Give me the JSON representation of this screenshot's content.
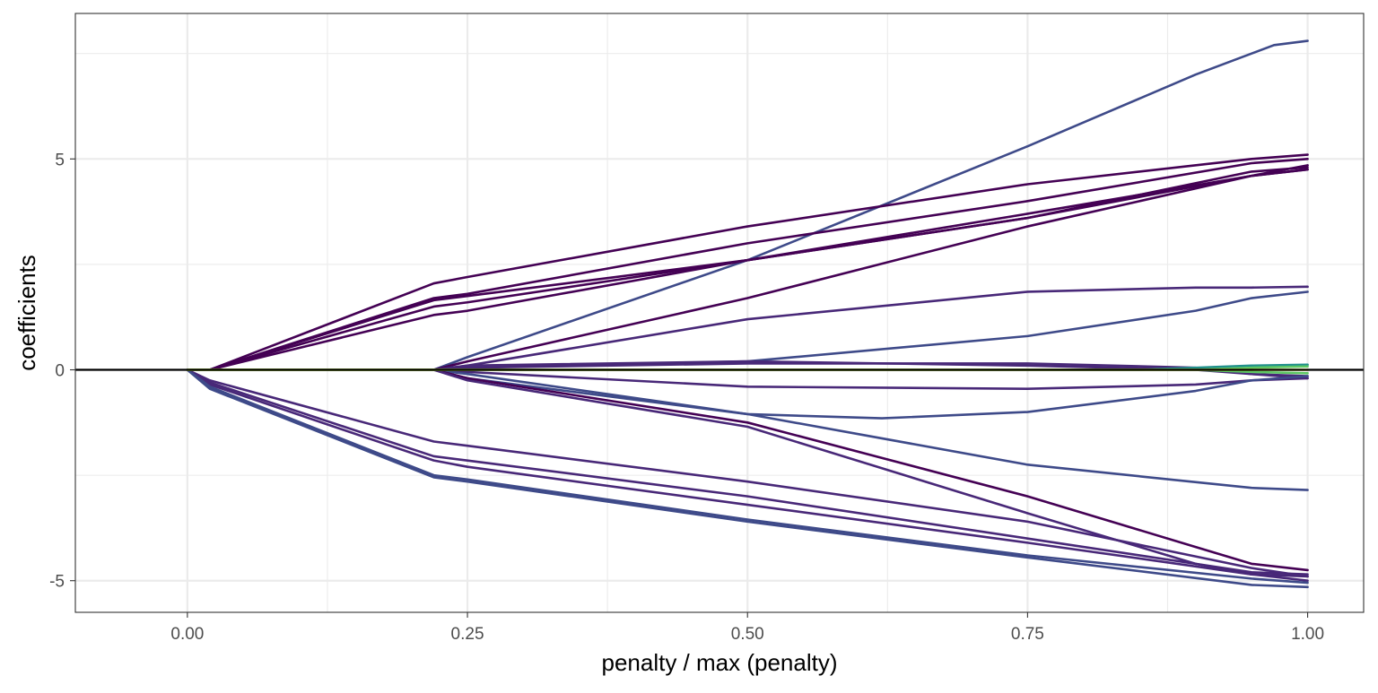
{
  "chart_data": {
    "type": "line",
    "title": "",
    "xlabel": "penalty / max (penalty)",
    "ylabel": "coefficients",
    "xlim": [
      -0.1,
      1.05
    ],
    "ylim": [
      -5.75,
      8.45
    ],
    "x_ticks": [
      0.0,
      0.25,
      0.5,
      0.75,
      1.0
    ],
    "x_tick_labels": [
      "0.00",
      "0.25",
      "0.50",
      "0.75",
      "1.00"
    ],
    "y_ticks": [
      -5,
      0,
      5
    ],
    "y_tick_labels": [
      "-5",
      "0",
      "5"
    ],
    "grid": true,
    "legend": "none",
    "reference_line": {
      "y": 0,
      "color": "#000000"
    },
    "colors": {
      "dark_purple": "#440154",
      "indigo": "#482878",
      "slate_blue": "#3e4a89",
      "teal": "#21908c",
      "green": "#5dc863",
      "yellow": "#fde725"
    },
    "series": [
      {
        "color": "#3e4a89",
        "x": [
          0,
          0.2,
          0.22,
          0.25,
          0.5,
          0.75,
          0.9,
          0.95,
          0.97,
          1.0
        ],
        "values": [
          0,
          0,
          0,
          0.3,
          2.6,
          5.3,
          7.0,
          7.5,
          7.7,
          7.8
        ]
      },
      {
        "color": "#440154",
        "x": [
          0,
          0.02,
          0.22,
          0.25,
          0.5,
          0.75,
          0.95,
          1.0
        ],
        "values": [
          0,
          0,
          2.05,
          2.2,
          3.4,
          4.4,
          5.0,
          5.1
        ]
      },
      {
        "color": "#440154",
        "x": [
          0,
          0.02,
          0.22,
          0.25,
          0.5,
          0.75,
          0.95,
          1.0
        ],
        "values": [
          0,
          0,
          1.7,
          1.8,
          3.0,
          4.0,
          4.9,
          5.0
        ]
      },
      {
        "color": "#440154",
        "x": [
          0,
          0.02,
          0.22,
          0.25,
          0.5,
          0.75,
          0.95,
          1.0
        ],
        "values": [
          0,
          0,
          1.65,
          1.75,
          2.6,
          3.6,
          4.7,
          4.8
        ]
      },
      {
        "color": "#440154",
        "x": [
          0,
          0.02,
          0.22,
          0.25,
          0.5,
          0.75,
          0.95,
          1.0
        ],
        "values": [
          0,
          0,
          1.5,
          1.6,
          2.6,
          3.7,
          4.6,
          4.75
        ]
      },
      {
        "color": "#440154",
        "x": [
          0,
          0.02,
          0.22,
          0.25,
          0.5,
          0.75,
          0.95,
          1.0
        ],
        "values": [
          0,
          0,
          1.3,
          1.4,
          2.6,
          3.6,
          4.6,
          4.75
        ]
      },
      {
        "color": "#440154",
        "x": [
          0,
          0.22,
          0.25,
          0.5,
          0.75,
          0.95,
          1.0
        ],
        "values": [
          0,
          0,
          0.2,
          1.7,
          3.4,
          4.6,
          4.85
        ]
      },
      {
        "color": "#482878",
        "x": [
          0,
          0.22,
          0.25,
          0.5,
          0.75,
          0.9,
          0.95,
          1.0
        ],
        "values": [
          0,
          0,
          0.1,
          1.2,
          1.85,
          1.95,
          1.95,
          1.97
        ]
      },
      {
        "color": "#3e4a89",
        "x": [
          0,
          0.22,
          0.25,
          0.5,
          0.75,
          0.9,
          0.95,
          1.0
        ],
        "values": [
          0,
          0,
          0.05,
          0.2,
          0.8,
          1.4,
          1.7,
          1.85
        ]
      },
      {
        "color": "#482878",
        "x": [
          0,
          0.22,
          0.25,
          0.5,
          0.75,
          0.9,
          0.95,
          1.0
        ],
        "values": [
          0,
          0,
          0.1,
          0.2,
          0.1,
          0,
          -0.1,
          -0.15
        ]
      },
      {
        "color": "#482878",
        "x": [
          0,
          0.22,
          0.25,
          0.5,
          0.75,
          0.9,
          0.95,
          1.0
        ],
        "values": [
          0,
          0,
          0.05,
          0.15,
          0.15,
          0.05,
          -0.1,
          -0.2
        ]
      },
      {
        "color": "#482878",
        "x": [
          0,
          0.22,
          0.25,
          0.5,
          0.75,
          0.9,
          0.95,
          1.0
        ],
        "values": [
          0,
          0,
          -0.05,
          -0.4,
          -0.45,
          -0.35,
          -0.25,
          -0.2
        ]
      },
      {
        "color": "#3e4a89",
        "x": [
          0,
          0.22,
          0.25,
          0.5,
          0.62,
          0.75,
          0.9,
          0.95,
          1.0
        ],
        "values": [
          0,
          0,
          -0.2,
          -1.05,
          -1.15,
          -1.0,
          -0.5,
          -0.25,
          -0.15
        ]
      },
      {
        "color": "#3e4a89",
        "x": [
          0,
          0.22,
          0.25,
          0.5,
          0.75,
          0.95,
          1.0
        ],
        "values": [
          0,
          0,
          -0.1,
          -1.05,
          -2.25,
          -2.8,
          -2.85
        ]
      },
      {
        "color": "#440154",
        "x": [
          0,
          0.22,
          0.25,
          0.5,
          0.75,
          0.9,
          0.95,
          1.0
        ],
        "values": [
          0,
          0,
          -0.2,
          -1.25,
          -3.0,
          -4.2,
          -4.6,
          -4.75
        ]
      },
      {
        "color": "#482878",
        "x": [
          0,
          0.22,
          0.25,
          0.5,
          0.75,
          0.9,
          0.95,
          1.0
        ],
        "values": [
          0,
          0,
          -0.25,
          -1.35,
          -3.4,
          -4.6,
          -4.85,
          -4.9
        ]
      },
      {
        "color": "#482878",
        "x": [
          0,
          0.02,
          0.22,
          0.25,
          0.5,
          0.75,
          0.95,
          1.0
        ],
        "values": [
          0,
          -0.25,
          -1.7,
          -1.8,
          -2.65,
          -3.6,
          -4.7,
          -4.9
        ]
      },
      {
        "color": "#482878",
        "x": [
          0,
          0.02,
          0.22,
          0.25,
          0.5,
          0.75,
          0.95,
          1.0
        ],
        "values": [
          0,
          -0.3,
          -2.05,
          -2.15,
          -3.0,
          -4.0,
          -4.8,
          -4.85
        ]
      },
      {
        "color": "#482878",
        "x": [
          0,
          0.02,
          0.22,
          0.25,
          0.5,
          0.75,
          0.95,
          1.0
        ],
        "values": [
          0,
          -0.35,
          -2.15,
          -2.3,
          -3.2,
          -4.1,
          -4.85,
          -5.0
        ]
      },
      {
        "color": "#3e4a89",
        "x": [
          0,
          0.02,
          0.22,
          0.25,
          0.5,
          0.75,
          0.95,
          1.0
        ],
        "values": [
          0,
          -0.4,
          -2.5,
          -2.6,
          -3.55,
          -4.4,
          -4.95,
          -5.05
        ]
      },
      {
        "color": "#3e4a89",
        "x": [
          0,
          0.02,
          0.22,
          0.25,
          0.5,
          0.75,
          0.95,
          1.0
        ],
        "values": [
          0,
          -0.45,
          -2.55,
          -2.65,
          -3.6,
          -4.45,
          -5.1,
          -5.15
        ]
      },
      {
        "color": "#21908c",
        "x": [
          0,
          0.85,
          0.95,
          1.0
        ],
        "values": [
          0,
          0,
          0.1,
          0.12
        ]
      },
      {
        "color": "#5dc863",
        "x": [
          0,
          0.9,
          0.95,
          1.0
        ],
        "values": [
          0,
          0,
          0.05,
          0.08
        ]
      },
      {
        "color": "#5dc863",
        "x": [
          0,
          0.9,
          0.95,
          1.0
        ],
        "values": [
          0,
          0,
          -0.05,
          -0.08
        ]
      },
      {
        "color": "#fde725",
        "x": [
          0,
          1.0
        ],
        "values": [
          0,
          0
        ]
      }
    ]
  }
}
